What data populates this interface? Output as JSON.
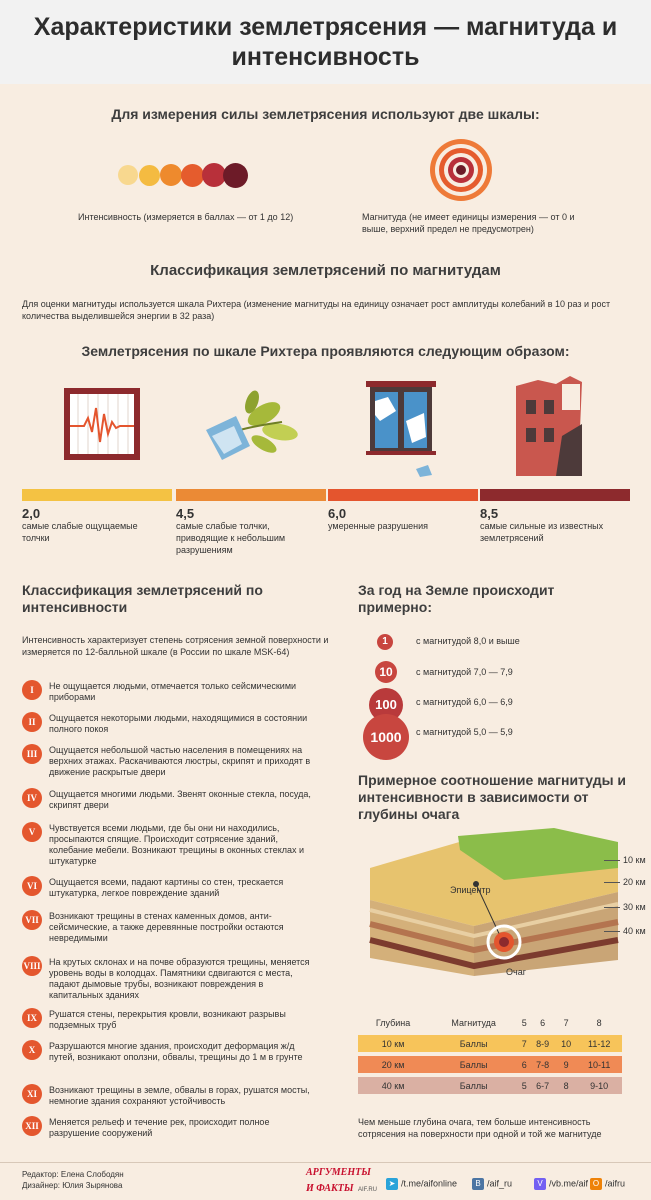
{
  "title": "Характеристики землетрясения — магнитуда и интенсивность",
  "scales_heading": "Для измерения силы землетрясения используют две шкалы:",
  "intensity_caption": "Интенсивность (измеряется в баллах — от 1 до 12)",
  "magnitude_caption": "Магнитуда (не имеет единицы измерения — от 0 и выше, верхний предел не предусмотрен)",
  "intensity_colors": [
    "#f8d88f",
    "#f4bb41",
    "#ee8a2d",
    "#e55c2d",
    "#b8303a",
    "#6d1b28"
  ],
  "magnitude_section": {
    "heading": "Классификация землетрясений по магнитудам",
    "text": "Для оценки магнитуды используется шкала Рихтера (изменение магнитуды на единицу означает рост амплитуды колебаний в 10 раз и рост количества выделившейся энергии в 32 раза)",
    "richter_heading": "Землетрясения по шкале Рихтера проявляются следующим образом:",
    "levels": [
      {
        "value": "2,0",
        "desc": "самые слабые ощущаемые толчки",
        "color": "#f4c243",
        "icon": "seismograph-icon"
      },
      {
        "value": "4,5",
        "desc": "самые слабые толчки, приводящие к небольшим разрушениям",
        "color": "#eb8a35",
        "icon": "falling-plant-icon"
      },
      {
        "value": "6,0",
        "desc": "умеренные разрушения",
        "color": "#e4552e",
        "icon": "broken-window-icon"
      },
      {
        "value": "8,5",
        "desc": "самые сильные из известных землетрясений",
        "color": "#8d2a2d",
        "icon": "ruined-building-icon"
      }
    ]
  },
  "intensity_section": {
    "heading": "Классификация землетрясений по интенсивности",
    "text": "Интенсивность характеризует степень сотрясения земной поверхности и измеряется по 12-балльной шкале (в России по шкале MSK-64)",
    "items": [
      {
        "num": "I",
        "text": "Не ощущается людьми, отмечается только сейсмическими приборами"
      },
      {
        "num": "II",
        "text": "Ощущается некоторыми людьми, находящимися в состоянии полного покоя"
      },
      {
        "num": "III",
        "text": "Ощущается небольшой частью населения в помещениях на верхних этажах. Раскачиваются люстры, скрипят и приходят в движение раскрытые двери"
      },
      {
        "num": "IV",
        "text": "Ощущается многими людьми. Звенят оконные стекла, посуда, скрипят двери"
      },
      {
        "num": "V",
        "text": "Чувствуется всеми людьми, где бы они ни находились, просыпаются спящие. Происходит сотрясение зданий, колебание мебели. Возникают трещины в оконных стеклах и штукатурке"
      },
      {
        "num": "VI",
        "text": "Ощущается всеми, падают картины со стен, трескается штукатурка, легкое повреждение зданий"
      },
      {
        "num": "VII",
        "text": "Возникают трещины в стенах каменных домов, анти-сейсмические, а также деревянные постройки остаются невредимыми"
      },
      {
        "num": "VIII",
        "text": "На крутых склонах и на почве образуются трещины, меняется уровень воды в колодцах. Памятники сдвигаются с места, падают дымовые трубы, возникают повреждения в капитальных зданиях"
      },
      {
        "num": "IX",
        "text": "Рушатся стены, перекрытия кровли, возникают разрывы подземных труб"
      },
      {
        "num": "X",
        "text": "Разрушаются многие здания, происходит деформация ж/д путей, возникают оползни, обвалы, трещины до 1 м в грунте"
      },
      {
        "num": "XI",
        "text": "Возникают трещины в земле, обвалы в горах, рушатся мосты, немногие здания сохраняют устойчивость"
      },
      {
        "num": "XII",
        "text": "Меняется рельеф и течение рек, происходит полное разрушение сооружений"
      }
    ]
  },
  "yearly_section": {
    "heading": "За год на Земле происходит примерно:",
    "items": [
      {
        "count": "1",
        "label": "с магнитудой 8,0 и выше"
      },
      {
        "count": "10",
        "label": "с магнитудой 7,0 — 7,9"
      },
      {
        "count": "100",
        "label": "с магнитудой 6,0 — 6,9"
      },
      {
        "count": "1000",
        "label": "с магнитудой 5,0 — 5,9"
      }
    ]
  },
  "depth_section": {
    "heading": "Примерное соотношение магнитуды и интенсивности в зависимости от глубины очага",
    "epicenter_label": "Эпицентр",
    "focus_label": "Очаг",
    "depth_marks": [
      "10 км",
      "20 км",
      "30 км",
      "40 км"
    ],
    "table": {
      "headers": [
        "Глубина",
        "Магнитуда",
        "5",
        "6",
        "7",
        "8"
      ],
      "rows": [
        {
          "depth": "10 км",
          "label": "Баллы",
          "values": [
            "7",
            "8-9",
            "10",
            "11-12"
          ],
          "color": "#f7c45a"
        },
        {
          "depth": "20 км",
          "label": "Баллы",
          "values": [
            "6",
            "7-8",
            "9",
            "10-11"
          ],
          "color": "#f08a55"
        },
        {
          "depth": "40 км",
          "label": "Баллы",
          "values": [
            "5",
            "6-7",
            "8",
            "9-10"
          ],
          "color": "#dab0a3"
        }
      ]
    },
    "note": "Чем меньше глубина очага, тем больше интенсивность сотрясения на поверхности при одной и той же магнитуде"
  },
  "footer": {
    "editor": "Редактор: Елена Слободян",
    "designer": "Дизайнер: Юлия Зырянова",
    "brand_top": "АРГУМЕНТЫ",
    "brand_bottom": "И ФАКТЫ",
    "brand_site": "AIF.RU",
    "links": [
      {
        "icon": "telegram-icon",
        "text": "/t.me/aifonline",
        "color": "#2aa3d9"
      },
      {
        "icon": "vk-icon",
        "text": "/aif_ru",
        "color": "#4c75a3"
      },
      {
        "icon": "viber-icon",
        "text": "/vb.me/aif",
        "color": "#7360f2"
      },
      {
        "icon": "ok-icon",
        "text": "/aifru",
        "color": "#ee8208"
      }
    ]
  }
}
